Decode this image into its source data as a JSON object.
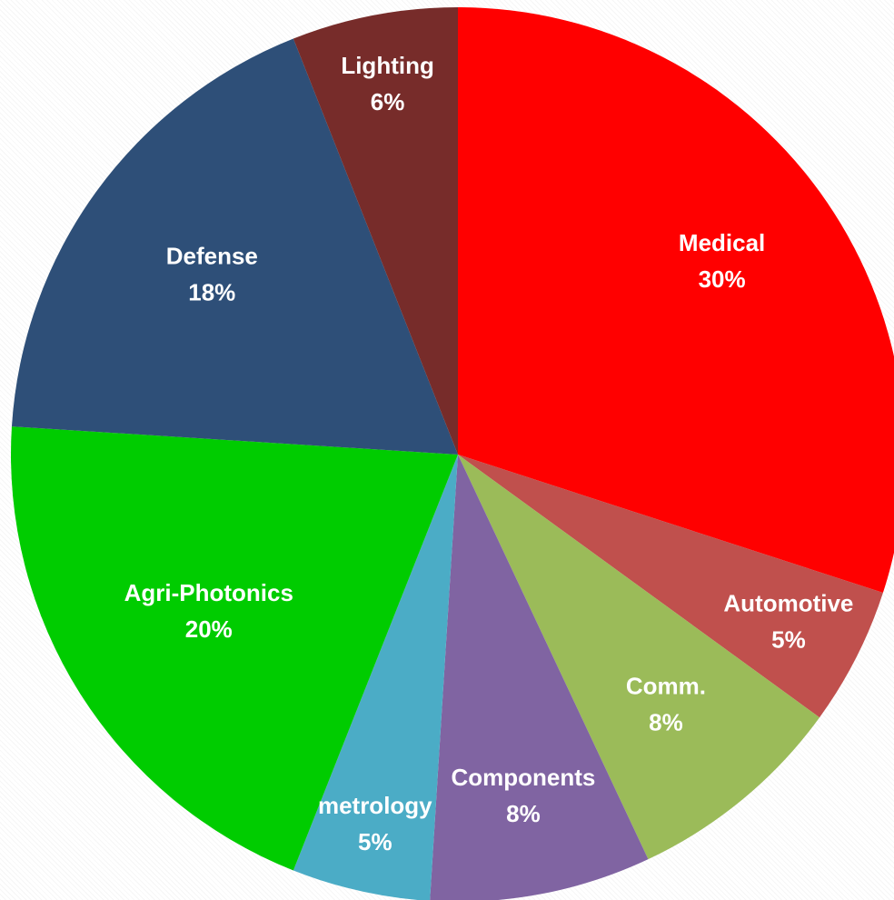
{
  "chart_data": {
    "type": "pie",
    "start_angle_deg": 0,
    "direction": "clockwise",
    "slices": [
      {
        "label": "Medical",
        "value": 30,
        "value_label": "30%",
        "color": "#ff0000"
      },
      {
        "label": "Automotive",
        "value": 5,
        "value_label": "5%",
        "color": "#c0504d"
      },
      {
        "label": "Comm.",
        "value": 8,
        "value_label": "8%",
        "color": "#9bbb59"
      },
      {
        "label": "Components",
        "value": 8,
        "value_label": "8%",
        "color": "#8064a2"
      },
      {
        "label": "metrology",
        "value": 5,
        "value_label": "5%",
        "color": "#4bacc6"
      },
      {
        "label": "Agri-Photonics",
        "value": 20,
        "value_label": "20%",
        "color": "#00cc00"
      },
      {
        "label": "Defense",
        "value": 18,
        "value_label": "18%",
        "color": "#2e4f78"
      },
      {
        "label": "Lighting",
        "value": 6,
        "value_label": "6%",
        "color": "#772c2a"
      }
    ]
  }
}
